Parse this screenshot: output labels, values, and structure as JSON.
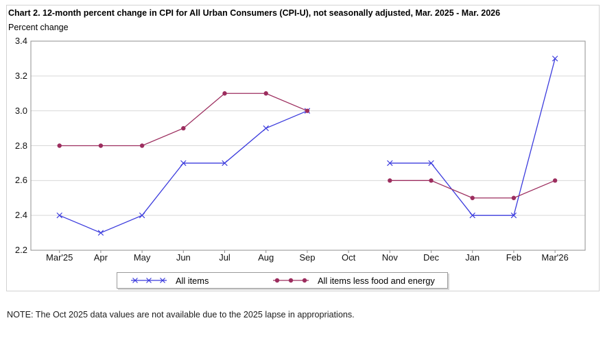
{
  "chart": {
    "title": "Chart 2. 12-month percent change in CPI for All Urban Consumers (CPI-U), not seasonally adjusted, Mar. 2025 - Mar. 2026",
    "unit_label": "Percent change",
    "note": "NOTE: The Oct 2025 data values are not available due to the 2025 lapse in appropriations."
  },
  "chart_data": {
    "type": "line",
    "title": "Chart 2. 12-month percent change in CPI for All Urban Consumers (CPI-U), not seasonally adjusted, Mar. 2025 - Mar. 2026",
    "ylabel": "Percent change",
    "xlabel": "",
    "categories": [
      "Mar'25",
      "Apr",
      "May",
      "Jun",
      "Jul",
      "Aug",
      "Sep",
      "Oct",
      "Nov",
      "Dec",
      "Jan",
      "Feb",
      "Mar'26"
    ],
    "series": [
      {
        "name": "All items",
        "marker": "x",
        "color": "#3b3bdd",
        "values": [
          2.4,
          2.3,
          2.4,
          2.7,
          2.7,
          2.9,
          3.0,
          null,
          2.7,
          2.7,
          2.4,
          2.4,
          3.3
        ]
      },
      {
        "name": "All items less food and energy",
        "marker": "dot",
        "color": "#9c2d5e",
        "values": [
          2.8,
          2.8,
          2.8,
          2.9,
          3.1,
          3.1,
          3.0,
          null,
          2.6,
          2.6,
          2.5,
          2.5,
          2.6
        ]
      }
    ],
    "ylim": [
      2.2,
      3.4
    ],
    "ytick_step": 0.2,
    "missing_category": "Oct",
    "grid": "horizontal",
    "legend_position": "bottom",
    "colors": {
      "gridline": "#d8d8d8",
      "plot_border": "#8f8f8f",
      "tick": "#8f8f8f"
    }
  }
}
